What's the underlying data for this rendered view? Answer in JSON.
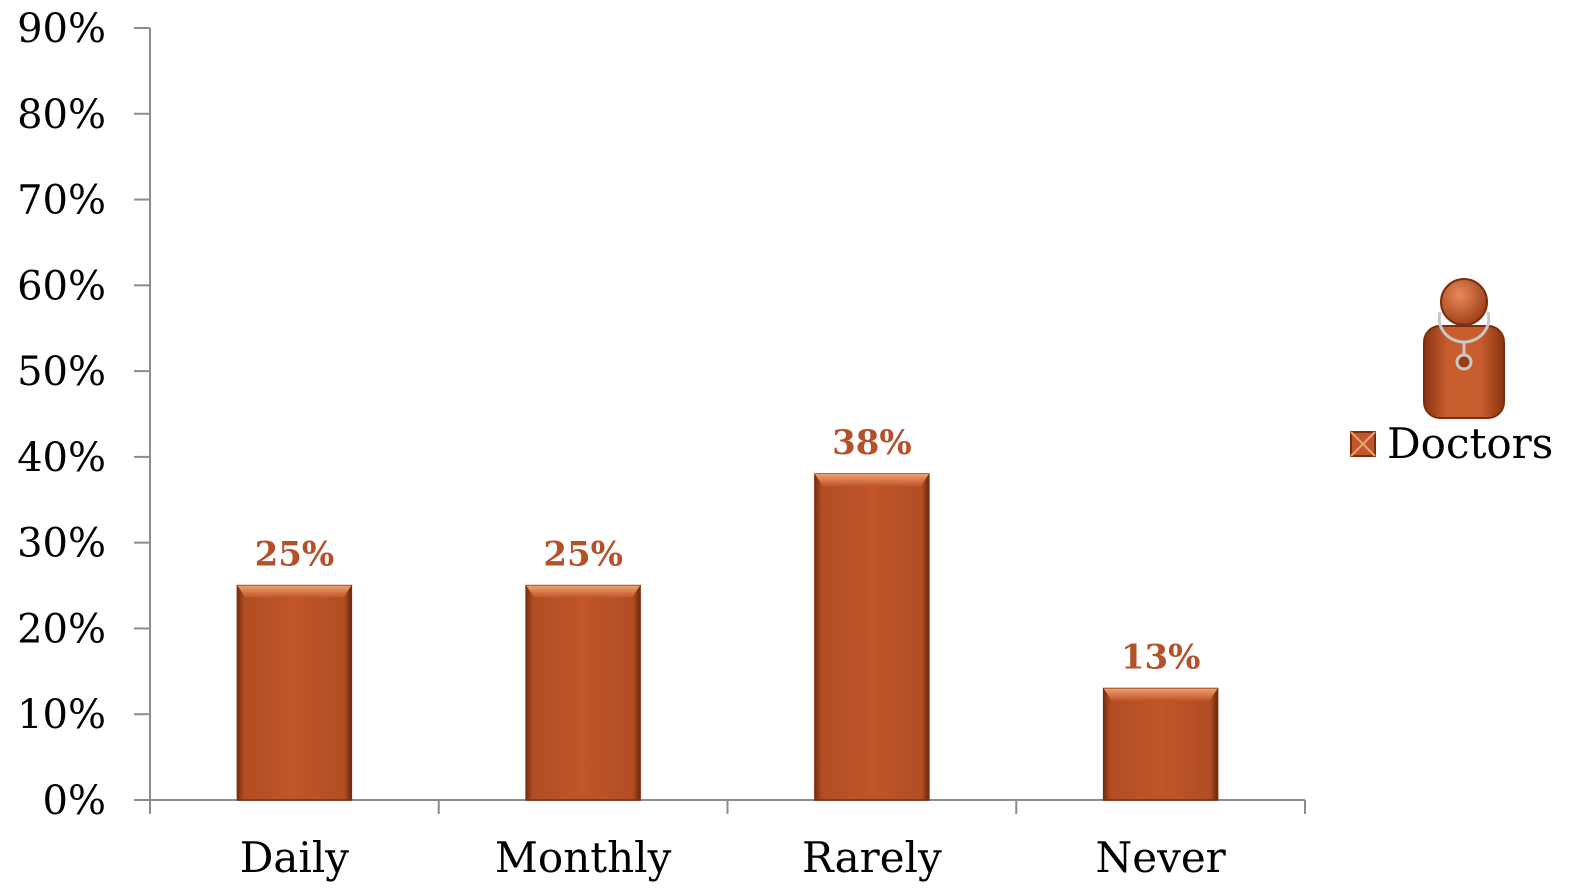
{
  "chart_data": {
    "type": "bar",
    "categories": [
      "Daily",
      "Monthly",
      "Rarely",
      "Never"
    ],
    "series": [
      {
        "name": "Doctors",
        "values": [
          25,
          25,
          38,
          13
        ]
      }
    ],
    "data_labels": [
      "25%",
      "25%",
      "38%",
      "13%"
    ],
    "y_ticks": [
      "0%",
      "10%",
      "20%",
      "30%",
      "40%",
      "50%",
      "60%",
      "70%",
      "80%",
      "90%"
    ],
    "ylim": [
      0,
      90
    ],
    "title": "",
    "xlabel": "",
    "ylabel": "",
    "grid": false,
    "legend": "right",
    "colors": {
      "bar": "#c0562a",
      "bar_dark": "#7a2e10",
      "bar_light": "#e8895a",
      "data_label": "#b5502a",
      "axis": "#8c8c8c"
    }
  },
  "legend": {
    "label": "Doctors",
    "icon": "doctor-icon"
  }
}
